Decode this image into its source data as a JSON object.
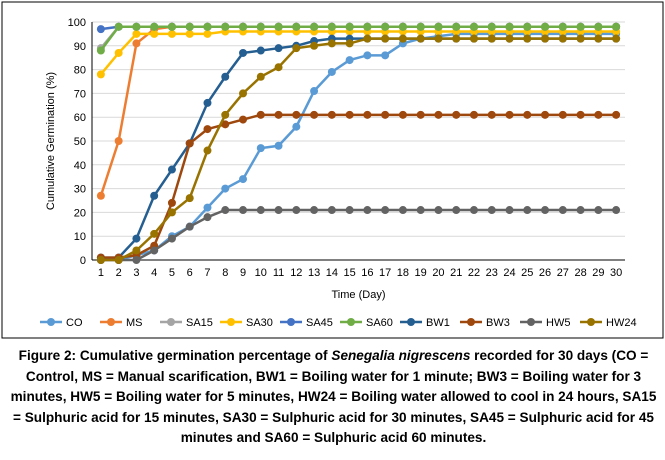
{
  "chart_data": {
    "type": "line",
    "xlabel": "Time (Day)",
    "ylabel": "Cumulative Germination (%)",
    "ylim": [
      0,
      100
    ],
    "yticks": [
      0,
      10,
      20,
      30,
      40,
      50,
      60,
      70,
      80,
      90,
      100
    ],
    "x": [
      1,
      2,
      3,
      4,
      5,
      6,
      7,
      8,
      9,
      10,
      11,
      12,
      13,
      14,
      15,
      16,
      17,
      18,
      19,
      20,
      21,
      22,
      23,
      24,
      25,
      26,
      27,
      28,
      29,
      30
    ],
    "grid": "horizontal",
    "legend": "bottom",
    "series": [
      {
        "name": "CO",
        "color": "#5B9BD5",
        "values": [
          0,
          0,
          2,
          4,
          10,
          14,
          22,
          30,
          34,
          47,
          48,
          56,
          71,
          79,
          84,
          86,
          86,
          91,
          93,
          94,
          95,
          95,
          95,
          95,
          95,
          95,
          95,
          95,
          95,
          95
        ]
      },
      {
        "name": "MS",
        "color": "#ED7D31",
        "values": [
          27,
          50,
          91,
          97,
          98,
          98,
          98,
          98,
          98,
          98,
          98,
          98,
          98,
          98,
          98,
          98,
          98,
          98,
          98,
          98,
          98,
          98,
          98,
          98,
          98,
          98,
          98,
          98,
          98,
          98
        ]
      },
      {
        "name": "SA15",
        "color": "#A5A5A5",
        "values": [
          89,
          98,
          98,
          98,
          98,
          98,
          98,
          98,
          98,
          98,
          98,
          98,
          98,
          98,
          98,
          98,
          98,
          98,
          98,
          98,
          98,
          98,
          98,
          98,
          98,
          98,
          98,
          98,
          98,
          98
        ]
      },
      {
        "name": "SA30",
        "color": "#FFC000",
        "values": [
          78,
          87,
          95,
          95,
          95,
          95,
          95,
          96,
          96,
          96,
          96,
          96,
          96,
          96,
          96,
          96,
          96,
          96,
          96,
          96,
          96,
          96,
          96,
          96,
          96,
          96,
          96,
          96,
          96,
          96
        ]
      },
      {
        "name": "SA45",
        "color": "#4472C4",
        "values": [
          97,
          98,
          98,
          98,
          98,
          98,
          98,
          98,
          98,
          98,
          98,
          98,
          98,
          98,
          98,
          98,
          98,
          98,
          98,
          98,
          98,
          98,
          98,
          98,
          98,
          98,
          98,
          98,
          98,
          98
        ]
      },
      {
        "name": "SA60",
        "color": "#70AD47",
        "values": [
          88,
          98,
          98,
          98,
          98,
          98,
          98,
          98,
          98,
          98,
          98,
          98,
          98,
          98,
          98,
          98,
          98,
          98,
          98,
          98,
          98,
          98,
          98,
          98,
          98,
          98,
          98,
          98,
          98,
          98
        ]
      },
      {
        "name": "BW1",
        "color": "#255E91",
        "values": [
          1,
          1,
          9,
          27,
          38,
          49,
          66,
          77,
          87,
          88,
          89,
          90,
          92,
          93,
          93,
          93,
          93,
          93,
          93,
          93,
          93,
          93,
          93,
          93,
          93,
          93,
          93,
          93,
          93,
          93
        ]
      },
      {
        "name": "BW3",
        "color": "#9E480E",
        "values": [
          1,
          1,
          2,
          6,
          24,
          49,
          55,
          57,
          59,
          61,
          61,
          61,
          61,
          61,
          61,
          61,
          61,
          61,
          61,
          61,
          61,
          61,
          61,
          61,
          61,
          61,
          61,
          61,
          61,
          61
        ]
      },
      {
        "name": "HW5",
        "color": "#636363",
        "values": [
          0,
          0,
          0,
          4,
          9,
          14,
          18,
          21,
          21,
          21,
          21,
          21,
          21,
          21,
          21,
          21,
          21,
          21,
          21,
          21,
          21,
          21,
          21,
          21,
          21,
          21,
          21,
          21,
          21,
          21
        ]
      },
      {
        "name": "HW24",
        "color": "#997300",
        "values": [
          0,
          0,
          4,
          11,
          20,
          26,
          46,
          61,
          70,
          77,
          81,
          89,
          90,
          91,
          91,
          93,
          93,
          93,
          93,
          93,
          93,
          93,
          93,
          93,
          93,
          93,
          93,
          93,
          93,
          93
        ]
      }
    ]
  },
  "caption": {
    "lead": "Figure 2: Cumulative germination percentage of ",
    "species": "Senegalia nigrescens",
    "rest": "  recorded for 30 days (CO = Control, MS = Manual scarification,  BW1 = Boiling water for 1 minute; BW3 = Boiling water for 3 minutes, HW5 = Boiling water for 5 minutes, HW24 = Boiling water allowed to cool in 24 hours, SA15 = Sulphuric acid for 15 minutes, SA30 = Sulphuric acid for 30 minutes, SA45 = Sulphuric acid for 45 minutes and SA60 = Sulphuric acid 60 minutes."
  }
}
